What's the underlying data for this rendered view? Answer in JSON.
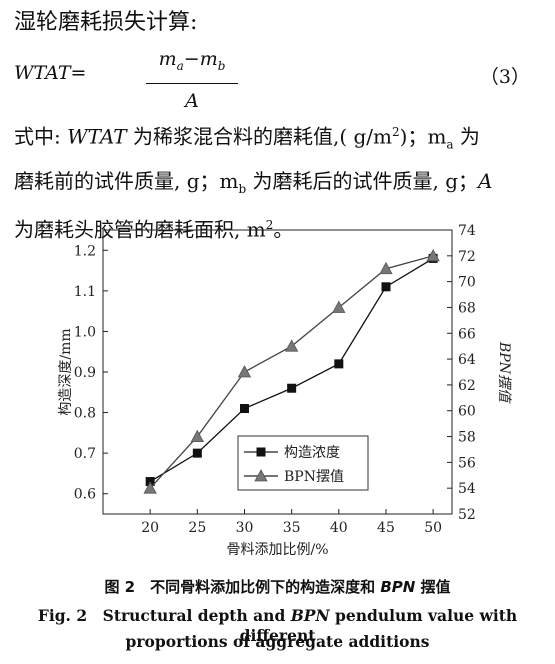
{
  "section_title": "湿轮磨耗损失计算:",
  "equation": {
    "lhs": "WTAT",
    "equals": "=",
    "numerator": "m",
    "num_sub_a": "a",
    "num_minus": "−m",
    "num_sub_b": "b",
    "denominator": "A",
    "number": "（3）"
  },
  "para": {
    "l1a": "式中: ",
    "l1var": "WTAT",
    "l1b": " 为稀浆混合料的磨耗值,( g/m",
    "l1sup": "2",
    "l1c": ")；m",
    "l1sub": "a",
    "l1d": " 为",
    "l2a": "磨耗前的试件质量, g；m",
    "l2sub": "b",
    "l2b": " 为磨耗后的试件质量, g；",
    "l2var": "A",
    "l3a": "为磨耗头胶管的磨耗面积, m",
    "l3sup": "2",
    "l3b": "。"
  },
  "chart_data": {
    "type": "line",
    "x": [
      20,
      25,
      30,
      35,
      40,
      45,
      50
    ],
    "xticks": [
      "20",
      "25",
      "30",
      "35",
      "40",
      "45",
      "50"
    ],
    "xlabel": "骨料添加比例/%",
    "xlim": [
      15,
      52
    ],
    "ylabel_left": "构造深度/mm",
    "ylim_left": [
      0.55,
      1.25
    ],
    "yticks_left": [
      "0.6",
      "0.7",
      "0.8",
      "0.9",
      "1.0",
      "1.1",
      "1.2"
    ],
    "ylabel_right": "BPN摆值",
    "ylim_right": [
      52,
      74
    ],
    "yticks_right": [
      "52",
      "54",
      "56",
      "58",
      "60",
      "62",
      "64",
      "66",
      "68",
      "70",
      "72",
      "74"
    ],
    "series": [
      {
        "name": "构造浓度",
        "axis": "left",
        "marker": "square",
        "values": [
          0.63,
          0.7,
          0.81,
          0.86,
          0.92,
          1.11,
          1.18
        ]
      },
      {
        "name": "BPN摆值",
        "axis": "right",
        "marker": "triangle",
        "values": [
          54,
          58,
          63,
          65,
          68,
          71,
          72
        ]
      }
    ],
    "legend_position": "bottom-right",
    "grid": false
  },
  "caption": {
    "cn_prefix": "图 2　不同骨料添加比例下的构造深度和 ",
    "cn_var": "BPN",
    "cn_suffix": " 摆值",
    "en1_a": "Fig. 2　Structural depth and ",
    "en1_var": "BPN",
    "en1_b": " pendulum value with different",
    "en2": "proportions of aggregate additions"
  }
}
